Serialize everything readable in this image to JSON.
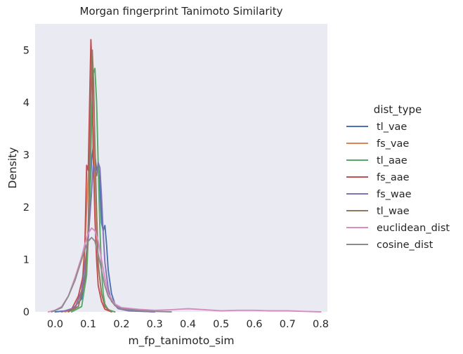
{
  "chart_data": {
    "type": "line",
    "title": "Morgan fingerprint Tanimoto Similarity",
    "xlabel": "m_fp_tanimoto_sim",
    "ylabel": "Density",
    "xlim": [
      -0.06,
      0.82
    ],
    "ylim": [
      0,
      5.5
    ],
    "xticks": [
      "0.0",
      "0.1",
      "0.2",
      "0.3",
      "0.4",
      "0.5",
      "0.6",
      "0.7",
      "0.8"
    ],
    "xtick_values": [
      0.0,
      0.1,
      0.2,
      0.3,
      0.4,
      0.5,
      0.6,
      0.7,
      0.8
    ],
    "yticks": [
      "0",
      "1",
      "2",
      "3",
      "4",
      "5"
    ],
    "ytick_values": [
      0,
      1,
      2,
      3,
      4,
      5
    ],
    "grid": false,
    "background": "#eaeaf2",
    "legend": {
      "title": "dist_type",
      "placement": "right"
    },
    "series": [
      {
        "name": "tl_vae",
        "color": "#4c72b0",
        "points": [
          [
            0.0,
            0
          ],
          [
            0.05,
            0.03
          ],
          [
            0.08,
            0.25
          ],
          [
            0.095,
            0.9
          ],
          [
            0.1,
            1.6
          ],
          [
            0.105,
            2.3
          ],
          [
            0.11,
            2.9
          ],
          [
            0.115,
            3.15
          ],
          [
            0.12,
            3.0
          ],
          [
            0.125,
            2.7
          ],
          [
            0.13,
            2.8
          ],
          [
            0.135,
            2.4
          ],
          [
            0.14,
            1.7
          ],
          [
            0.145,
            1.55
          ],
          [
            0.15,
            1.65
          ],
          [
            0.155,
            1.3
          ],
          [
            0.16,
            0.8
          ],
          [
            0.17,
            0.35
          ],
          [
            0.18,
            0.15
          ],
          [
            0.2,
            0.07
          ],
          [
            0.25,
            0.02
          ],
          [
            0.3,
            0
          ]
        ]
      },
      {
        "name": "fs_vae",
        "color": "#dd8452",
        "points": [
          [
            0.03,
            0
          ],
          [
            0.06,
            0.05
          ],
          [
            0.08,
            0.4
          ],
          [
            0.09,
            1.3
          ],
          [
            0.1,
            2.6
          ],
          [
            0.105,
            3.4
          ],
          [
            0.11,
            3.75
          ],
          [
            0.115,
            3.5
          ],
          [
            0.12,
            2.7
          ],
          [
            0.125,
            1.7
          ],
          [
            0.13,
            0.9
          ],
          [
            0.14,
            0.35
          ],
          [
            0.15,
            0.12
          ],
          [
            0.16,
            0.03
          ],
          [
            0.18,
            0
          ]
        ]
      },
      {
        "name": "tl_aae",
        "color": "#55a868",
        "points": [
          [
            0.05,
            0
          ],
          [
            0.08,
            0.1
          ],
          [
            0.095,
            0.7
          ],
          [
            0.105,
            2.2
          ],
          [
            0.11,
            3.7
          ],
          [
            0.115,
            4.55
          ],
          [
            0.12,
            4.65
          ],
          [
            0.125,
            4.0
          ],
          [
            0.13,
            2.8
          ],
          [
            0.135,
            1.6
          ],
          [
            0.14,
            0.8
          ],
          [
            0.145,
            0.35
          ],
          [
            0.15,
            0.15
          ],
          [
            0.16,
            0.04
          ],
          [
            0.18,
            0
          ]
        ]
      },
      {
        "name": "fs_aae",
        "color": "#c44e52",
        "points": [
          [
            0.02,
            0
          ],
          [
            0.05,
            0.05
          ],
          [
            0.07,
            0.3
          ],
          [
            0.085,
            0.7
          ],
          [
            0.09,
            1.3
          ],
          [
            0.095,
            2.8
          ],
          [
            0.1,
            2.7
          ],
          [
            0.105,
            4.3
          ],
          [
            0.108,
            5.2
          ],
          [
            0.112,
            4.5
          ],
          [
            0.115,
            3.0
          ],
          [
            0.12,
            1.8
          ],
          [
            0.125,
            1.0
          ],
          [
            0.13,
            0.5
          ],
          [
            0.14,
            0.2
          ],
          [
            0.15,
            0.05
          ],
          [
            0.17,
            0
          ]
        ]
      },
      {
        "name": "fs_wae",
        "color": "#8172b3",
        "points": [
          [
            0.02,
            0
          ],
          [
            0.06,
            0.08
          ],
          [
            0.08,
            0.4
          ],
          [
            0.1,
            1.4
          ],
          [
            0.11,
            2.3
          ],
          [
            0.115,
            2.8
          ],
          [
            0.12,
            2.7
          ],
          [
            0.125,
            2.6
          ],
          [
            0.13,
            2.85
          ],
          [
            0.135,
            2.75
          ],
          [
            0.14,
            2.2
          ],
          [
            0.145,
            1.5
          ],
          [
            0.15,
            0.95
          ],
          [
            0.16,
            0.45
          ],
          [
            0.17,
            0.2
          ],
          [
            0.19,
            0.06
          ],
          [
            0.22,
            0.02
          ],
          [
            0.3,
            0
          ]
        ]
      },
      {
        "name": "tl_wae",
        "color": "#937860",
        "points": [
          [
            0.04,
            0
          ],
          [
            0.07,
            0.1
          ],
          [
            0.09,
            0.6
          ],
          [
            0.1,
            1.6
          ],
          [
            0.105,
            3.2
          ],
          [
            0.108,
            4.2
          ],
          [
            0.112,
            5.0
          ],
          [
            0.116,
            4.4
          ],
          [
            0.12,
            3.2
          ],
          [
            0.125,
            1.9
          ],
          [
            0.13,
            0.9
          ],
          [
            0.14,
            0.35
          ],
          [
            0.15,
            0.1
          ],
          [
            0.17,
            0
          ]
        ]
      },
      {
        "name": "euclidean_dist",
        "color": "#da8bc3",
        "points": [
          [
            -0.02,
            0
          ],
          [
            0.0,
            0.03
          ],
          [
            0.02,
            0.1
          ],
          [
            0.04,
            0.3
          ],
          [
            0.06,
            0.65
          ],
          [
            0.08,
            1.05
          ],
          [
            0.09,
            1.3
          ],
          [
            0.1,
            1.5
          ],
          [
            0.11,
            1.6
          ],
          [
            0.12,
            1.55
          ],
          [
            0.13,
            1.35
          ],
          [
            0.14,
            1.0
          ],
          [
            0.15,
            0.65
          ],
          [
            0.16,
            0.35
          ],
          [
            0.18,
            0.15
          ],
          [
            0.2,
            0.08
          ],
          [
            0.25,
            0.05
          ],
          [
            0.3,
            0.03
          ],
          [
            0.35,
            0.04
          ],
          [
            0.4,
            0.06
          ],
          [
            0.45,
            0.04
          ],
          [
            0.5,
            0.02
          ],
          [
            0.55,
            0.03
          ],
          [
            0.6,
            0.03
          ],
          [
            0.65,
            0.02
          ],
          [
            0.7,
            0.02
          ],
          [
            0.75,
            0.01
          ],
          [
            0.8,
            0
          ]
        ]
      },
      {
        "name": "cosine_dist",
        "color": "#8c8c8c",
        "points": [
          [
            -0.01,
            0
          ],
          [
            0.02,
            0.08
          ],
          [
            0.04,
            0.3
          ],
          [
            0.06,
            0.6
          ],
          [
            0.08,
            1.0
          ],
          [
            0.09,
            1.2
          ],
          [
            0.1,
            1.35
          ],
          [
            0.11,
            1.42
          ],
          [
            0.12,
            1.35
          ],
          [
            0.13,
            1.1
          ],
          [
            0.14,
            0.8
          ],
          [
            0.15,
            0.5
          ],
          [
            0.16,
            0.3
          ],
          [
            0.18,
            0.12
          ],
          [
            0.2,
            0.06
          ],
          [
            0.25,
            0.03
          ],
          [
            0.3,
            0.01
          ],
          [
            0.35,
            0
          ]
        ]
      }
    ]
  }
}
